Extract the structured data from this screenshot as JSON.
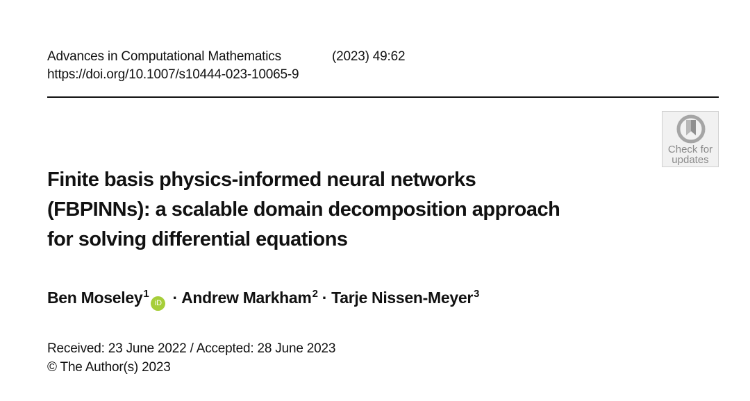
{
  "header": {
    "journal": "Advances in Computational Mathematics",
    "volume": "(2023) 49:62",
    "doi": "https://doi.org/10.1007/s10444-023-10065-9"
  },
  "badge": {
    "line1": "Check for",
    "line2": "updates",
    "icon": "crossmark-icon"
  },
  "title": {
    "lines": [
      "Finite basis physics-informed neural networks",
      "(FBPINNs): a scalable domain decomposition approach",
      "for solving differential equations"
    ]
  },
  "authors": [
    {
      "name": "Ben Moseley",
      "affil": "1",
      "orcid": "iD"
    },
    {
      "name": "Andrew Markham",
      "affil": "2"
    },
    {
      "name": "Tarje Nissen-Meyer",
      "affil": "3"
    }
  ],
  "separator": "·",
  "dates": "Received: 23 June 2022 / Accepted: 28 June 2023",
  "copyright": "© The Author(s) 2023",
  "colors": {
    "orcid": "#a6ce39",
    "badge_text": "#8a8a8a"
  }
}
